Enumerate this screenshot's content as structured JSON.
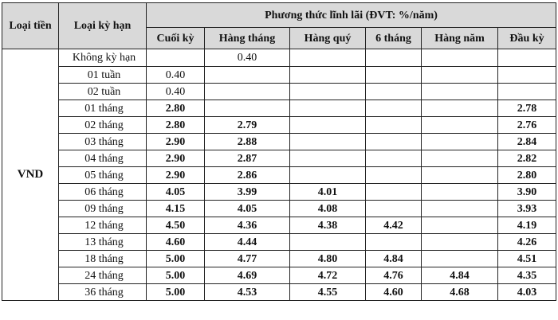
{
  "header": {
    "currency_label": "Loại tiền",
    "term_label": "Loại kỳ hạn",
    "group_label": "Phương thức lĩnh lãi (ĐVT: %/năm)",
    "columns": [
      "Cuối kỳ",
      "Hàng tháng",
      "Hàng quý",
      "6 tháng",
      "Hàng năm",
      "Đầu kỳ"
    ]
  },
  "currency": "VND",
  "rows": [
    {
      "term": "Không kỳ hạn",
      "values": [
        "",
        "0.40",
        "",
        "",
        "",
        ""
      ],
      "bold": false
    },
    {
      "term": "01 tuần",
      "values": [
        "0.40",
        "",
        "",
        "",
        "",
        ""
      ],
      "bold": false
    },
    {
      "term": "02 tuần",
      "values": [
        "0.40",
        "",
        "",
        "",
        "",
        ""
      ],
      "bold": false
    },
    {
      "term": "01 tháng",
      "values": [
        "2.80",
        "",
        "",
        "",
        "",
        "2.78"
      ],
      "bold": true
    },
    {
      "term": "02 tháng",
      "values": [
        "2.80",
        "2.79",
        "",
        "",
        "",
        "2.76"
      ],
      "bold": true
    },
    {
      "term": "03 tháng",
      "values": [
        "2.90",
        "2.88",
        "",
        "",
        "",
        "2.84"
      ],
      "bold": true
    },
    {
      "term": "04 tháng",
      "values": [
        "2.90",
        "2.87",
        "",
        "",
        "",
        "2.82"
      ],
      "bold": true
    },
    {
      "term": "05 tháng",
      "values": [
        "2.90",
        "2.86",
        "",
        "",
        "",
        "2.80"
      ],
      "bold": true
    },
    {
      "term": "06 tháng",
      "values": [
        "4.05",
        "3.99",
        "4.01",
        "",
        "",
        "3.90"
      ],
      "bold": true
    },
    {
      "term": "09 tháng",
      "values": [
        "4.15",
        "4.05",
        "4.08",
        "",
        "",
        "3.93"
      ],
      "bold": true
    },
    {
      "term": "12 tháng",
      "values": [
        "4.50",
        "4.36",
        "4.38",
        "4.42",
        "",
        "4.19"
      ],
      "bold": true
    },
    {
      "term": "13 tháng",
      "values": [
        "4.60",
        "4.44",
        "",
        "",
        "",
        "4.26"
      ],
      "bold": true
    },
    {
      "term": "18 tháng",
      "values": [
        "5.00",
        "4.77",
        "4.80",
        "4.84",
        "",
        "4.51"
      ],
      "bold": true
    },
    {
      "term": "24 tháng",
      "values": [
        "5.00",
        "4.69",
        "4.72",
        "4.76",
        "4.84",
        "4.35"
      ],
      "bold": true
    },
    {
      "term": "36 tháng",
      "values": [
        "5.00",
        "4.53",
        "4.55",
        "4.60",
        "4.68",
        "4.03"
      ],
      "bold": true
    }
  ]
}
